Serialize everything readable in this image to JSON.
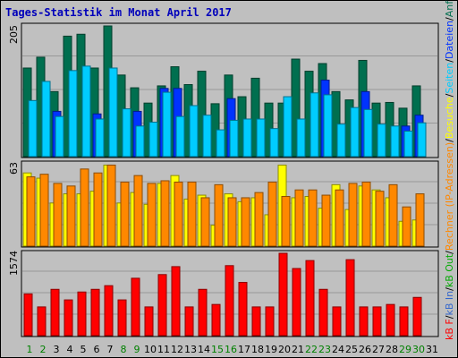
{
  "chart_data": {
    "type": "bar",
    "title": "Tages-Statistik im Monat April 2017",
    "categories": [
      "1",
      "2",
      "3",
      "4",
      "5",
      "6",
      "7",
      "8",
      "9",
      "10",
      "11",
      "12",
      "13",
      "14",
      "15",
      "16",
      "17",
      "18",
      "19",
      "20",
      "21",
      "22",
      "23",
      "24",
      "25",
      "26",
      "27",
      "28",
      "29",
      "30",
      "31"
    ],
    "weekend_days": [
      "1",
      "2",
      "8",
      "9",
      "15",
      "16",
      "22",
      "23",
      "29",
      "30"
    ],
    "panels": [
      {
        "id": "top",
        "ymax": 205,
        "ytick_label": "205",
        "series": [
          {
            "name": "Anfragen",
            "color": "#006f4f",
            "values": [
              139,
              156,
              102,
              189,
              192,
              139,
              205,
              128,
              108,
              84,
              111,
              141,
              113,
              134,
              83,
              128,
              94,
              123,
              84,
              84,
              153,
              134,
              146,
              102,
              89,
              151,
              84,
              85,
              76,
              111,
              null
            ]
          },
          {
            "name": "Dateien",
            "color": "#0033ff",
            "values": [
              null,
              null,
              71,
              null,
              null,
              67,
              null,
              null,
              71,
              null,
              107,
              107,
              null,
              null,
              null,
              91,
              null,
              null,
              null,
              null,
              null,
              null,
              120,
              null,
              null,
              102,
              null,
              null,
              48,
              65,
              null
            ]
          },
          {
            "name": "Seiten",
            "color": "#00ccff",
            "values": [
              88,
              118,
              63,
              135,
              142,
              59,
              139,
              75,
              48,
              54,
              101,
              63,
              80,
              65,
              42,
              57,
              59,
              59,
              44,
              94,
              59,
              100,
              97,
              51,
              77,
              74,
              51,
              48,
              40,
              53,
              null
            ]
          }
        ]
      },
      {
        "id": "middle",
        "ymax": 63,
        "ytick_label": "63",
        "series": [
          {
            "name": "Besuche",
            "color": "#ffff00",
            "values": [
              56,
              52,
              33,
              40,
              40,
              42,
              62,
              33,
              41,
              32,
              48,
              54,
              36,
              39,
              16,
              40,
              34,
              37,
              24,
              62,
              37,
              38,
              29,
              47,
              28,
              46,
              43,
              37,
              19,
              20,
              null
            ]
          },
          {
            "name": "Rechner (IP-Adressen)",
            "color": "#ff8800",
            "values": [
              53,
              55,
              48,
              46,
              59,
              56,
              62,
              49,
              54,
              48,
              50,
              49,
              49,
              37,
              47,
              37,
              37,
              41,
              49,
              38,
              43,
              43,
              39,
              43,
              48,
              49,
              42,
              47,
              30,
              40,
              null
            ]
          }
        ]
      },
      {
        "id": "bottom",
        "ymax": 1574,
        "ytick_label": "1574",
        "series": [
          {
            "name": "kB F",
            "color": "#ff0000",
            "values": [
              798,
              549,
              885,
              683,
              834,
              885,
              955,
              683,
              1097,
              549,
              1167,
              1319,
              549,
              885,
              596,
              1338,
              1017,
              549,
              549,
              1574,
              1283,
              1435,
              885,
              549,
              1452,
              549,
              549,
              596,
              549,
              731,
              null
            ]
          }
        ]
      }
    ],
    "legend": [
      {
        "text": "kB F",
        "color": "#ff0000"
      },
      {
        "text": "/",
        "color": "#000000"
      },
      {
        "text": "kB In",
        "color": "#3366cc"
      },
      {
        "text": "/",
        "color": "#000000"
      },
      {
        "text": "kB Out",
        "color": "#00aa00"
      },
      {
        "text": "/",
        "color": "#000000"
      },
      {
        "text": "Rechner (IP-Adressen)",
        "color": "#ff8800"
      },
      {
        "text": "/",
        "color": "#000000"
      },
      {
        "text": "Besuche",
        "color": "#ffff00"
      },
      {
        "text": "/",
        "color": "#000000"
      },
      {
        "text": "Seiten",
        "color": "#00ccff"
      },
      {
        "text": "/",
        "color": "#000000"
      },
      {
        "text": "Dateien",
        "color": "#0033ff"
      },
      {
        "text": "/",
        "color": "#000000"
      },
      {
        "text": "Anfragen",
        "color": "#006f4f"
      }
    ],
    "legend_placement": "right, vertical",
    "grid": true
  }
}
